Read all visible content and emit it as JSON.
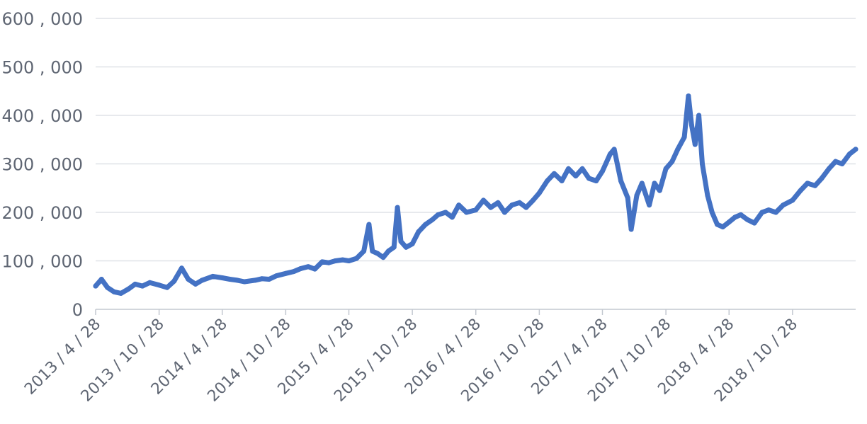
{
  "chart_data": {
    "type": "line",
    "title": "",
    "xlabel": "",
    "ylabel": "",
    "x_ticks": [
      "2013/4/28",
      "2013/10/28",
      "2014/4/28",
      "2014/10/28",
      "2015/4/28",
      "2015/10/28",
      "2016/4/28",
      "2016/10/28",
      "2017/4/28",
      "2017/10/28",
      "2018/4/28",
      "2018/10/28"
    ],
    "y_ticks": [
      "0",
      "100,000",
      "200,000",
      "300,000",
      "400,000",
      "500,000",
      "600,000"
    ],
    "ylim": [
      0,
      600000
    ],
    "xlim": [
      "2013-04-28",
      "2019-04-28"
    ],
    "grid": true,
    "legend": "none",
    "series": [
      {
        "color": "#4472c4",
        "points": [
          [
            "2013-04-28",
            48000
          ],
          [
            "2013-05-15",
            62000
          ],
          [
            "2013-06-01",
            45000
          ],
          [
            "2013-06-20",
            36000
          ],
          [
            "2013-07-10",
            33000
          ],
          [
            "2013-08-01",
            42000
          ],
          [
            "2013-08-20",
            52000
          ],
          [
            "2013-09-10",
            48000
          ],
          [
            "2013-10-01",
            55000
          ],
          [
            "2013-10-28",
            50000
          ],
          [
            "2013-11-20",
            45000
          ],
          [
            "2013-12-10",
            58000
          ],
          [
            "2014-01-01",
            85000
          ],
          [
            "2014-01-20",
            62000
          ],
          [
            "2014-02-10",
            52000
          ],
          [
            "2014-03-01",
            60000
          ],
          [
            "2014-04-01",
            68000
          ],
          [
            "2014-04-28",
            65000
          ],
          [
            "2014-05-20",
            62000
          ],
          [
            "2014-06-10",
            60000
          ],
          [
            "2014-07-01",
            57000
          ],
          [
            "2014-08-01",
            60000
          ],
          [
            "2014-08-20",
            63000
          ],
          [
            "2014-09-10",
            62000
          ],
          [
            "2014-10-01",
            69000
          ],
          [
            "2014-10-28",
            74000
          ],
          [
            "2014-11-20",
            78000
          ],
          [
            "2014-12-10",
            84000
          ],
          [
            "2015-01-01",
            88000
          ],
          [
            "2015-01-20",
            83000
          ],
          [
            "2015-02-10",
            98000
          ],
          [
            "2015-03-01",
            96000
          ],
          [
            "2015-03-20",
            100000
          ],
          [
            "2015-04-10",
            102000
          ],
          [
            "2015-04-28",
            100000
          ],
          [
            "2015-05-20",
            105000
          ],
          [
            "2015-06-10",
            120000
          ],
          [
            "2015-06-25",
            175000
          ],
          [
            "2015-07-05",
            120000
          ],
          [
            "2015-07-20",
            115000
          ],
          [
            "2015-08-05",
            107000
          ],
          [
            "2015-08-20",
            120000
          ],
          [
            "2015-09-05",
            128000
          ],
          [
            "2015-09-15",
            210000
          ],
          [
            "2015-09-25",
            140000
          ],
          [
            "2015-10-10",
            128000
          ],
          [
            "2015-10-28",
            135000
          ],
          [
            "2015-11-15",
            160000
          ],
          [
            "2015-12-05",
            175000
          ],
          [
            "2015-12-25",
            185000
          ],
          [
            "2016-01-10",
            195000
          ],
          [
            "2016-02-01",
            200000
          ],
          [
            "2016-02-20",
            190000
          ],
          [
            "2016-03-10",
            215000
          ],
          [
            "2016-04-01",
            200000
          ],
          [
            "2016-04-28",
            205000
          ],
          [
            "2016-05-20",
            225000
          ],
          [
            "2016-06-10",
            210000
          ],
          [
            "2016-07-01",
            220000
          ],
          [
            "2016-07-20",
            200000
          ],
          [
            "2016-08-10",
            215000
          ],
          [
            "2016-09-01",
            220000
          ],
          [
            "2016-09-20",
            210000
          ],
          [
            "2016-10-10",
            225000
          ],
          [
            "2016-10-28",
            240000
          ],
          [
            "2016-11-20",
            265000
          ],
          [
            "2016-12-10",
            280000
          ],
          [
            "2017-01-01",
            265000
          ],
          [
            "2017-01-20",
            290000
          ],
          [
            "2017-02-10",
            275000
          ],
          [
            "2017-03-01",
            290000
          ],
          [
            "2017-03-20",
            270000
          ],
          [
            "2017-04-10",
            265000
          ],
          [
            "2017-04-28",
            285000
          ],
          [
            "2017-05-20",
            320000
          ],
          [
            "2017-06-01",
            330000
          ],
          [
            "2017-06-20",
            265000
          ],
          [
            "2017-07-10",
            230000
          ],
          [
            "2017-07-20",
            165000
          ],
          [
            "2017-08-05",
            235000
          ],
          [
            "2017-08-20",
            260000
          ],
          [
            "2017-09-10",
            215000
          ],
          [
            "2017-09-25",
            260000
          ],
          [
            "2017-10-10",
            245000
          ],
          [
            "2017-10-28",
            290000
          ],
          [
            "2017-11-15",
            305000
          ],
          [
            "2017-12-01",
            330000
          ],
          [
            "2017-12-20",
            355000
          ],
          [
            "2018-01-01",
            440000
          ],
          [
            "2018-01-10",
            380000
          ],
          [
            "2018-01-20",
            340000
          ],
          [
            "2018-01-31",
            400000
          ],
          [
            "2018-02-10",
            300000
          ],
          [
            "2018-02-25",
            235000
          ],
          [
            "2018-03-10",
            200000
          ],
          [
            "2018-03-25",
            175000
          ],
          [
            "2018-04-10",
            170000
          ],
          [
            "2018-04-28",
            180000
          ],
          [
            "2018-05-15",
            190000
          ],
          [
            "2018-06-01",
            195000
          ],
          [
            "2018-06-20",
            185000
          ],
          [
            "2018-07-10",
            178000
          ],
          [
            "2018-08-01",
            200000
          ],
          [
            "2018-08-20",
            205000
          ],
          [
            "2018-09-10",
            200000
          ],
          [
            "2018-10-01",
            215000
          ],
          [
            "2018-10-28",
            225000
          ],
          [
            "2018-11-20",
            245000
          ],
          [
            "2018-12-10",
            260000
          ],
          [
            "2019-01-01",
            255000
          ],
          [
            "2019-01-20",
            270000
          ],
          [
            "2019-02-10",
            290000
          ],
          [
            "2019-03-01",
            305000
          ],
          [
            "2019-03-20",
            300000
          ],
          [
            "2019-04-10",
            320000
          ],
          [
            "2019-04-28",
            330000
          ]
        ]
      }
    ]
  }
}
